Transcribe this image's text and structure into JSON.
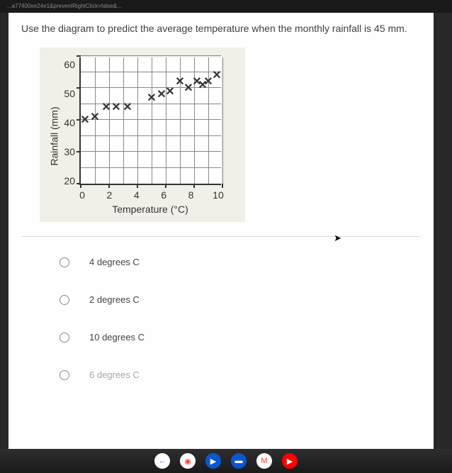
{
  "browser": {
    "url_fragment": "...a77400ee24e1&preventRightClick=false&..."
  },
  "question": {
    "text": "Use the diagram to predict the average temperature when the monthly rainfall is 45 mm."
  },
  "chart": {
    "type": "scatter",
    "xlabel": "Temperature (°C)",
    "ylabel": "Rainfall (mm)",
    "xlim": [
      0,
      10
    ],
    "ylim": [
      20,
      60
    ],
    "xticks": [
      0,
      2,
      4,
      6,
      8,
      10
    ],
    "yticks": [
      20,
      30,
      40,
      50,
      60
    ],
    "background_color": "#f1f0e8",
    "plot_background": "#ffffff",
    "grid_color": "#888888",
    "axis_color": "#333333",
    "text_color": "#333333",
    "marker_symbol": "✕",
    "marker_color": "#333333",
    "marker_fontsize": 16,
    "label_fontsize": 14,
    "points": [
      {
        "x": 0.3,
        "y": 38
      },
      {
        "x": 1.0,
        "y": 39
      },
      {
        "x": 1.8,
        "y": 42
      },
      {
        "x": 2.5,
        "y": 42
      },
      {
        "x": 3.3,
        "y": 42
      },
      {
        "x": 5.0,
        "y": 45
      },
      {
        "x": 5.7,
        "y": 46
      },
      {
        "x": 6.3,
        "y": 47
      },
      {
        "x": 7.0,
        "y": 50
      },
      {
        "x": 7.6,
        "y": 48
      },
      {
        "x": 8.2,
        "y": 50
      },
      {
        "x": 8.6,
        "y": 49
      },
      {
        "x": 9.0,
        "y": 50
      },
      {
        "x": 9.6,
        "y": 52
      }
    ]
  },
  "options": {
    "items": [
      {
        "label": "4 degrees C"
      },
      {
        "label": "2 degrees C"
      },
      {
        "label": "10 degrees C"
      },
      {
        "label": "6 degrees C"
      }
    ]
  },
  "taskbar": {
    "icons": [
      {
        "name": "back-icon",
        "bg": "#ffffff",
        "fg": "#4285f4",
        "glyph": "←"
      },
      {
        "name": "chrome-icon",
        "bg": "#ffffff",
        "fg": "#ea4335",
        "glyph": "◉"
      },
      {
        "name": "play-icon",
        "bg": "#0b57d0",
        "fg": "#ffffff",
        "glyph": "▶"
      },
      {
        "name": "docs-icon",
        "bg": "#0b57d0",
        "fg": "#ffffff",
        "glyph": "▬"
      },
      {
        "name": "gmail-icon",
        "bg": "#ffffff",
        "fg": "#ea4335",
        "glyph": "M"
      },
      {
        "name": "youtube-icon",
        "bg": "#ff0000",
        "fg": "#ffffff",
        "glyph": "▶"
      }
    ]
  }
}
